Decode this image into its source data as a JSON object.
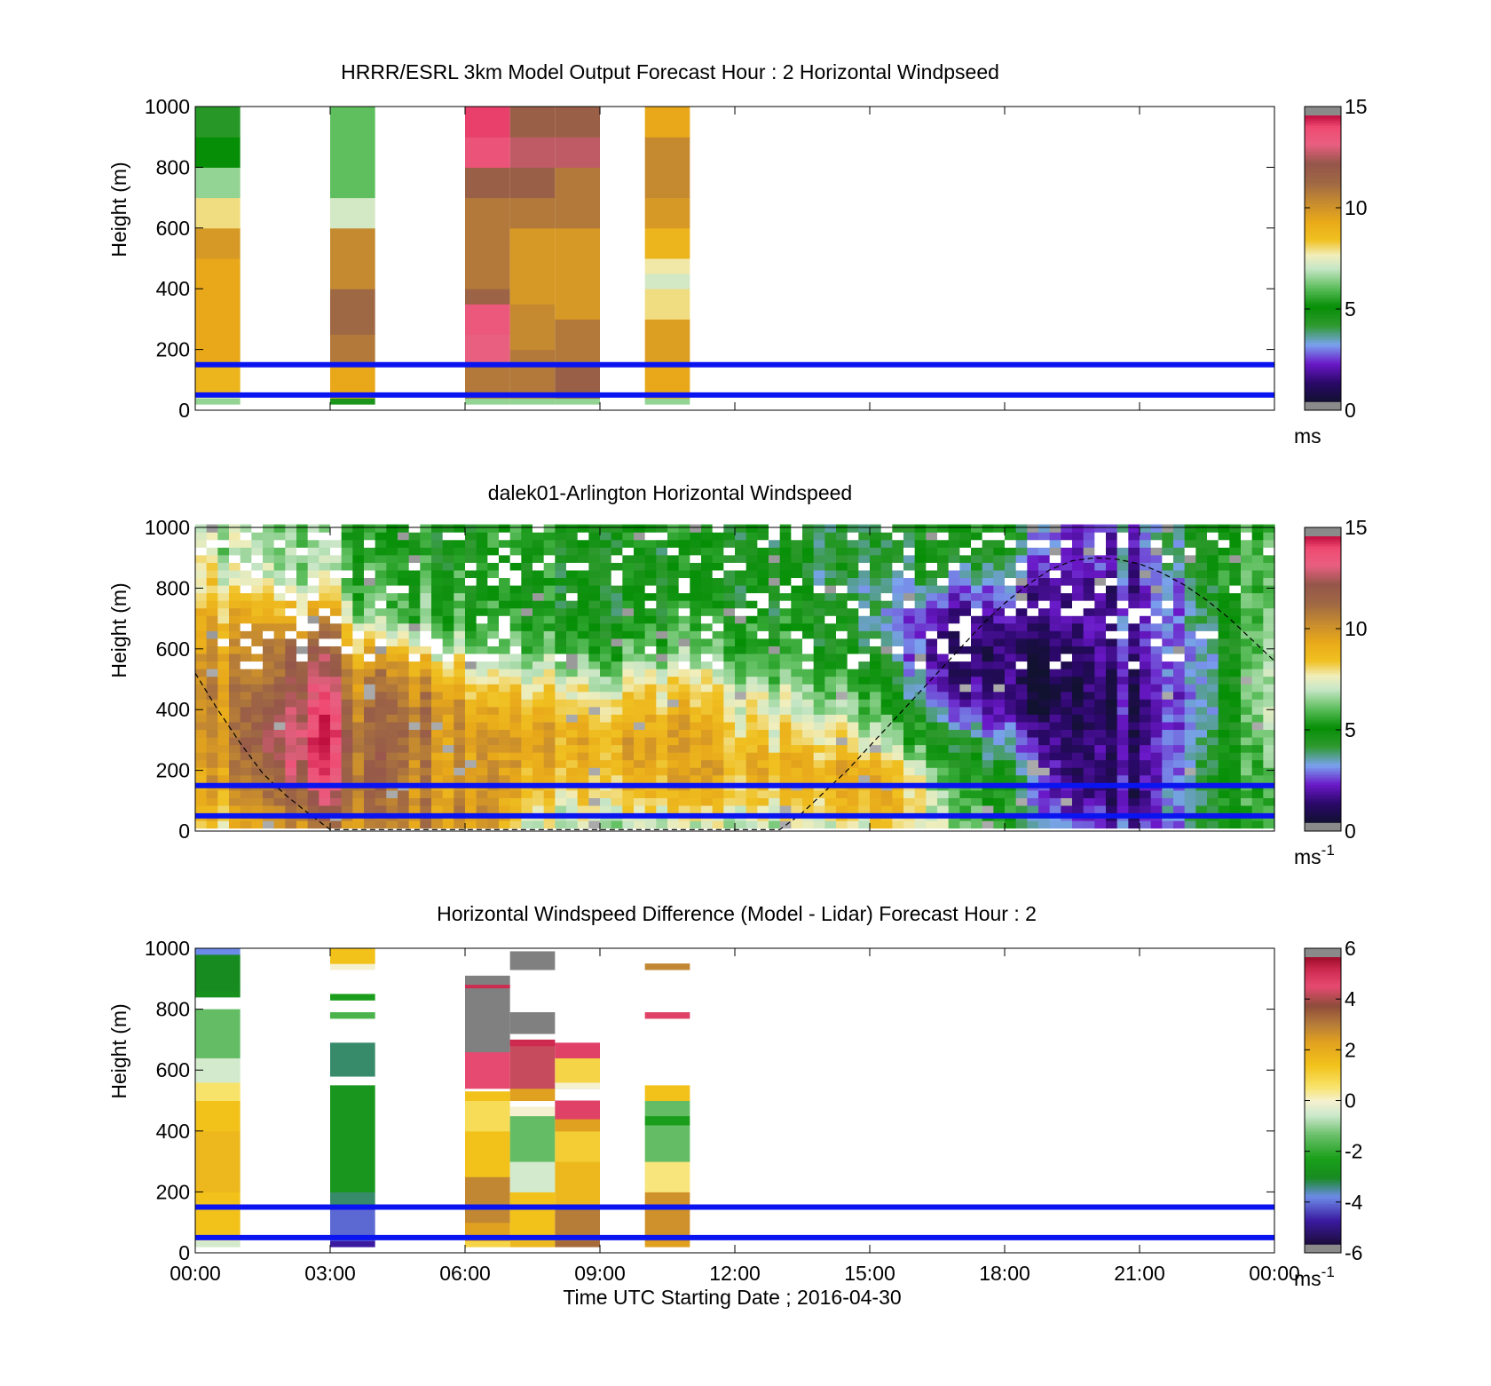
{
  "figure": {
    "xlabel": "Time UTC  Starting Date ; 2016-04-30",
    "x_tick_labels": [
      "00:00",
      "03:00",
      "06:00",
      "09:00",
      "12:00",
      "15:00",
      "18:00",
      "21:00",
      "00:00"
    ]
  },
  "chart_data": [
    {
      "type": "heatmap",
      "title": "HRRR/ESRL 3km Model Output   Forecast Hour : 2 Horizontal Windpseed",
      "ylabel": "Height (m)",
      "xlim": [
        0,
        24
      ],
      "ylim": [
        0,
        1000
      ],
      "y_tick_labels": [
        "0",
        "200",
        "400",
        "600",
        "800",
        "1000"
      ],
      "colorbar": {
        "min": 0,
        "max": 15,
        "ticks": [
          "0",
          "5",
          "10",
          "15"
        ],
        "unit": "ms",
        "unit_exp": ""
      },
      "reference_lines_m": [
        50,
        150
      ],
      "columns": [
        {
          "t0": 0,
          "t1": 1,
          "cells": [
            [
              20,
              40,
              6.5
            ],
            [
              40,
              60,
              7.5
            ],
            [
              60,
              150,
              9
            ],
            [
              150,
              500,
              9.5
            ],
            [
              500,
              600,
              10
            ],
            [
              600,
              700,
              8
            ],
            [
              700,
              800,
              6.5
            ],
            [
              800,
              900,
              5
            ],
            [
              900,
              1000,
              4.2
            ]
          ]
        },
        {
          "t0": 3,
          "t1": 4,
          "cells": [
            [
              20,
              40,
              4.5
            ],
            [
              40,
              150,
              9.5
            ],
            [
              150,
              250,
              11
            ],
            [
              250,
              400,
              11.5
            ],
            [
              400,
              600,
              10.5
            ],
            [
              600,
              700,
              7.2
            ],
            [
              700,
              1000,
              6
            ]
          ]
        },
        {
          "t0": 6,
          "t1": 7,
          "cells": [
            [
              20,
              40,
              6.5
            ],
            [
              40,
              150,
              11
            ],
            [
              150,
              250,
              13.5
            ],
            [
              250,
              350,
              13.8
            ],
            [
              350,
              400,
              11.8
            ],
            [
              400,
              550,
              11
            ],
            [
              550,
              700,
              11
            ],
            [
              700,
              800,
              12
            ],
            [
              800,
              900,
              14
            ],
            [
              900,
              1000,
              14.5
            ]
          ]
        },
        {
          "t0": 7,
          "t1": 8,
          "cells": [
            [
              20,
              40,
              6.5
            ],
            [
              40,
              200,
              11
            ],
            [
              200,
              350,
              10.5
            ],
            [
              350,
              600,
              10
            ],
            [
              600,
              700,
              11
            ],
            [
              700,
              800,
              12
            ],
            [
              800,
              900,
              13
            ],
            [
              900,
              1000,
              12
            ]
          ]
        },
        {
          "t0": 8,
          "t1": 9,
          "cells": [
            [
              20,
              40,
              6.5
            ],
            [
              40,
              150,
              12
            ],
            [
              150,
              300,
              11
            ],
            [
              300,
              600,
              10
            ],
            [
              600,
              800,
              11
            ],
            [
              800,
              900,
              13
            ],
            [
              900,
              1000,
              12
            ]
          ]
        },
        {
          "t0": 10,
          "t1": 11,
          "cells": [
            [
              20,
              40,
              6.5
            ],
            [
              40,
              150,
              9.5
            ],
            [
              150,
              300,
              9.8
            ],
            [
              300,
              400,
              8
            ],
            [
              400,
              450,
              7.2
            ],
            [
              450,
              500,
              7.8
            ],
            [
              500,
              600,
              9
            ],
            [
              600,
              700,
              10
            ],
            [
              700,
              900,
              10.5
            ],
            [
              900,
              1000,
              9.5
            ]
          ]
        }
      ]
    },
    {
      "type": "heatmap",
      "title": "dalek01-Arlington  Horizontal Windspeed",
      "ylabel": "Height (m)",
      "xlim": [
        0,
        24
      ],
      "ylim": [
        0,
        1000
      ],
      "y_tick_labels": [
        "0",
        "200",
        "400",
        "600",
        "800",
        "1000"
      ],
      "colorbar": {
        "min": 0,
        "max": 15,
        "ticks": [
          "0",
          "5",
          "10",
          "15"
        ],
        "unit": "ms",
        "unit_exp": "-1"
      },
      "reference_lines_m": [
        50,
        150
      ],
      "column_step_h": 0.25,
      "row_step_m": 25,
      "bottom_m": 10,
      "profile_times_h": [
        0,
        1.5,
        2.5,
        3.0,
        3.5,
        4.5,
        5.5,
        6.5,
        7.5,
        9.0,
        10.5,
        12.5,
        14.5,
        15.5,
        16.5,
        18.0,
        19.5,
        21.0,
        22.5,
        24.0
      ],
      "profile_heights_m": [
        0,
        100,
        200,
        300,
        400,
        500,
        600,
        700,
        800,
        900,
        1000
      ],
      "windspeed_profiles": [
        [
          8,
          8.5,
          9,
          9.5,
          10,
          10,
          9.5,
          9,
          8,
          7.5,
          7
        ],
        [
          9,
          10,
          11,
          11.5,
          11,
          10.5,
          10,
          9,
          7,
          6,
          6
        ],
        [
          10,
          12,
          13.5,
          14,
          13.5,
          12.5,
          11.5,
          9,
          7,
          6.5,
          6
        ],
        [
          11,
          12.5,
          14,
          14.5,
          14,
          13,
          12,
          10.5,
          7.5,
          6.5,
          6
        ],
        [
          10,
          11,
          11.5,
          11.5,
          11,
          10.5,
          9,
          7,
          6,
          5.5,
          5
        ],
        [
          10.5,
          11,
          11.5,
          11.5,
          11.5,
          11,
          9,
          6,
          5.5,
          5,
          5
        ],
        [
          10.5,
          10,
          10,
          10.5,
          10.5,
          9.5,
          7,
          6,
          5.5,
          5,
          5
        ],
        [
          10,
          10,
          10,
          9.5,
          9,
          7.5,
          6,
          5.5,
          5,
          5,
          5
        ],
        [
          7,
          8,
          9,
          9.5,
          9,
          7.5,
          6,
          5,
          5,
          5,
          5
        ],
        [
          6.5,
          8,
          9,
          9.5,
          8.5,
          7,
          5.5,
          4.5,
          4.5,
          4.5,
          5
        ],
        [
          6.5,
          8.5,
          9.5,
          9.5,
          9,
          8,
          6,
          5,
          4.5,
          4.5,
          5
        ],
        [
          6.5,
          8,
          9,
          8.5,
          7.5,
          6.5,
          5.5,
          5,
          4.5,
          4.5,
          4.5
        ],
        [
          7,
          9,
          9.5,
          8,
          6.5,
          5.5,
          4.5,
          4.5,
          4,
          4,
          4
        ],
        [
          8,
          9.5,
          9,
          6.5,
          5.5,
          4.5,
          3.5,
          3,
          3.5,
          4,
          4
        ],
        [
          7,
          6.5,
          5.5,
          4.5,
          3,
          1.5,
          1,
          1.5,
          3,
          4.5,
          5
        ],
        [
          5,
          5,
          4.5,
          3,
          1.2,
          0.8,
          1,
          1.5,
          2.5,
          4,
          5
        ],
        [
          3,
          1.5,
          1,
          1,
          0.8,
          0.8,
          1,
          1.5,
          1.5,
          2,
          2
        ],
        [
          2,
          1.5,
          1.5,
          1.5,
          1.5,
          1.5,
          2,
          2,
          2,
          2.5,
          3
        ],
        [
          4.5,
          4.5,
          4.5,
          4,
          3.5,
          3.5,
          3.5,
          4,
          4.5,
          5,
          5
        ],
        [
          6,
          6,
          6.5,
          7,
          7.5,
          7.5,
          7,
          7,
          6.5,
          6.5,
          6
        ]
      ],
      "overlay_curve_m": [
        [
          0.0,
          520
        ],
        [
          0.5,
          400
        ],
        [
          1.0,
          290
        ],
        [
          1.5,
          190
        ],
        [
          2.0,
          120
        ],
        [
          2.5,
          60
        ],
        [
          3.0,
          5
        ],
        [
          13.0,
          5
        ],
        [
          13.5,
          60
        ],
        [
          14.0,
          130
        ],
        [
          14.5,
          200
        ],
        [
          15.0,
          280
        ],
        [
          15.5,
          360
        ],
        [
          16.0,
          440
        ],
        [
          16.5,
          520
        ],
        [
          17.0,
          600
        ],
        [
          17.5,
          680
        ],
        [
          18.0,
          750
        ],
        [
          18.5,
          810
        ],
        [
          19.0,
          860
        ],
        [
          19.5,
          890
        ],
        [
          20.0,
          900
        ],
        [
          20.5,
          895
        ],
        [
          21.0,
          880
        ],
        [
          21.5,
          850
        ],
        [
          22.0,
          810
        ],
        [
          22.5,
          760
        ],
        [
          23.0,
          700
        ],
        [
          23.5,
          630
        ],
        [
          24.0,
          560
        ]
      ]
    },
    {
      "type": "heatmap",
      "title": "Horizontal Windspeed Difference (Model - Lidar) Forecast Hour : 2",
      "ylabel": "Height (m)",
      "xlim": [
        0,
        24
      ],
      "ylim": [
        0,
        1000
      ],
      "y_tick_labels": [
        "0",
        "200",
        "400",
        "600",
        "800",
        "1000"
      ],
      "colorbar": {
        "min": -6,
        "max": 6,
        "ticks": [
          "-6",
          "-4",
          "-2",
          "0",
          "2",
          "4",
          "6"
        ],
        "unit": "ms",
        "unit_exp": "-1"
      },
      "reference_lines_m": [
        50,
        150
      ],
      "columns": [
        {
          "t0": 0,
          "t1": 1,
          "cells": [
            [
              20,
              40,
              -0.5
            ],
            [
              40,
              60,
              0.2
            ],
            [
              60,
              200,
              1.5
            ],
            [
              200,
              400,
              1.8
            ],
            [
              400,
              500,
              1.5
            ],
            [
              500,
              560,
              0.6
            ],
            [
              560,
              600,
              -0.5
            ],
            [
              600,
              640,
              -0.5
            ],
            [
              640,
              800,
              -1.5
            ],
            [
              840,
              860,
              -3
            ],
            [
              860,
              980,
              -3.2
            ],
            [
              980,
              1000,
              -4
            ]
          ]
        },
        {
          "t0": 3,
          "t1": 4,
          "cells": [
            [
              20,
              40,
              -5
            ],
            [
              40,
              150,
              -4.3
            ],
            [
              150,
              200,
              -3.5
            ],
            [
              200,
              550,
              -2.8
            ],
            [
              580,
              690,
              -3.5
            ],
            [
              770,
              790,
              -1.8
            ],
            [
              830,
              850,
              -2.5
            ],
            [
              930,
              950,
              0
            ],
            [
              950,
              1000,
              1.5
            ]
          ]
        },
        {
          "t0": 6,
          "t1": 7,
          "cells": [
            [
              20,
              40,
              1
            ],
            [
              40,
              100,
              2.5
            ],
            [
              100,
              250,
              3
            ],
            [
              250,
              400,
              1.5
            ],
            [
              400,
              500,
              0.8
            ],
            [
              500,
              530,
              1.5
            ],
            [
              540,
              660,
              4.8
            ],
            [
              660,
              710,
              "nan"
            ],
            [
              710,
              890,
              "nan"
            ],
            [
              870,
              880,
              5.5
            ],
            [
              890,
              910,
              "nan"
            ]
          ]
        },
        {
          "t0": 7,
          "t1": 8,
          "cells": [
            [
              20,
              40,
              1.8
            ],
            [
              40,
              200,
              1.5
            ],
            [
              200,
              300,
              -0.5
            ],
            [
              300,
              450,
              -1.5
            ],
            [
              450,
              480,
              0
            ],
            [
              500,
              540,
              2.5
            ],
            [
              540,
              700,
              4.5
            ],
            [
              680,
              700,
              5.5
            ],
            [
              720,
              790,
              "nan"
            ],
            [
              930,
              990,
              "nan"
            ]
          ]
        },
        {
          "t0": 8,
          "t1": 9,
          "cells": [
            [
              20,
              40,
              3.5
            ],
            [
              40,
              150,
              3.2
            ],
            [
              150,
              300,
              1.8
            ],
            [
              300,
              400,
              1.2
            ],
            [
              400,
              440,
              2.5
            ],
            [
              440,
              500,
              5
            ],
            [
              540,
              550,
              "nan"
            ],
            [
              540,
              560,
              0
            ],
            [
              560,
              640,
              1
            ],
            [
              640,
              690,
              5
            ]
          ]
        },
        {
          "t0": 10,
          "t1": 11,
          "cells": [
            [
              20,
              40,
              2.5
            ],
            [
              40,
              200,
              2.8
            ],
            [
              200,
              300,
              0.5
            ],
            [
              300,
              420,
              -1.5
            ],
            [
              420,
              450,
              -2.5
            ],
            [
              450,
              500,
              -1.5
            ],
            [
              500,
              550,
              1.5
            ],
            [
              770,
              790,
              5
            ],
            [
              930,
              950,
              3
            ]
          ]
        }
      ]
    }
  ]
}
